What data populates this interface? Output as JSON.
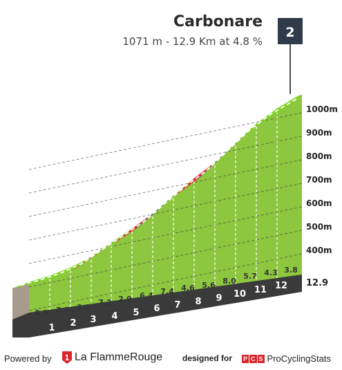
{
  "chart_data": {
    "type": "area",
    "title": "Carbonare",
    "subtitle": "1071 m - 12.9 Km at 4.8 %",
    "category_badge": "2",
    "km_labels": [
      "1",
      "2",
      "3",
      "4",
      "5",
      "6",
      "7",
      "8",
      "9",
      "10",
      "11",
      "12"
    ],
    "end_km_label": "12.9",
    "gradients": [
      0.9,
      2.7,
      3.6,
      7.2,
      2.9,
      6.4,
      7.4,
      4.6,
      5.6,
      8.0,
      5.7,
      4.3,
      3.8
    ],
    "gradient_labels": [
      "0.9",
      "2.7",
      "3.6",
      "7.2",
      "2.9",
      "6.4",
      "7.4",
      "4.6",
      "5.6",
      "8.0",
      "5.7",
      "4.3",
      "3.8"
    ],
    "altitude_ticks": [
      400,
      500,
      600,
      700,
      800,
      900,
      1000
    ],
    "altitude_tick_labels": [
      "400m",
      "500m",
      "600m",
      "700m",
      "800m",
      "900m",
      "1000m"
    ],
    "segment_colors": {
      "easy": "#7ed321",
      "medium": "#2b5f8a",
      "hard": "#e3232f"
    },
    "segment_difficulty": [
      "easy",
      "easy",
      "easy",
      "hard",
      "easy",
      "hard",
      "medium",
      "easy",
      "hard",
      "medium",
      "easy",
      "easy",
      "easy"
    ],
    "colors": {
      "face": "#8dc63f",
      "top_easy": "#7ed321",
      "base": "#3a3a3a",
      "left_wall": "#a89a8c",
      "badge": "#2f3a4a"
    }
  },
  "footer": {
    "powered_by": "Powered by",
    "lfr_name": "La FlammeRouge",
    "lfr_mark": "1",
    "designed_for": "designed for",
    "pcs_letters": [
      "P",
      "C",
      "S"
    ],
    "pcs_name": "ProCyclingStats"
  }
}
